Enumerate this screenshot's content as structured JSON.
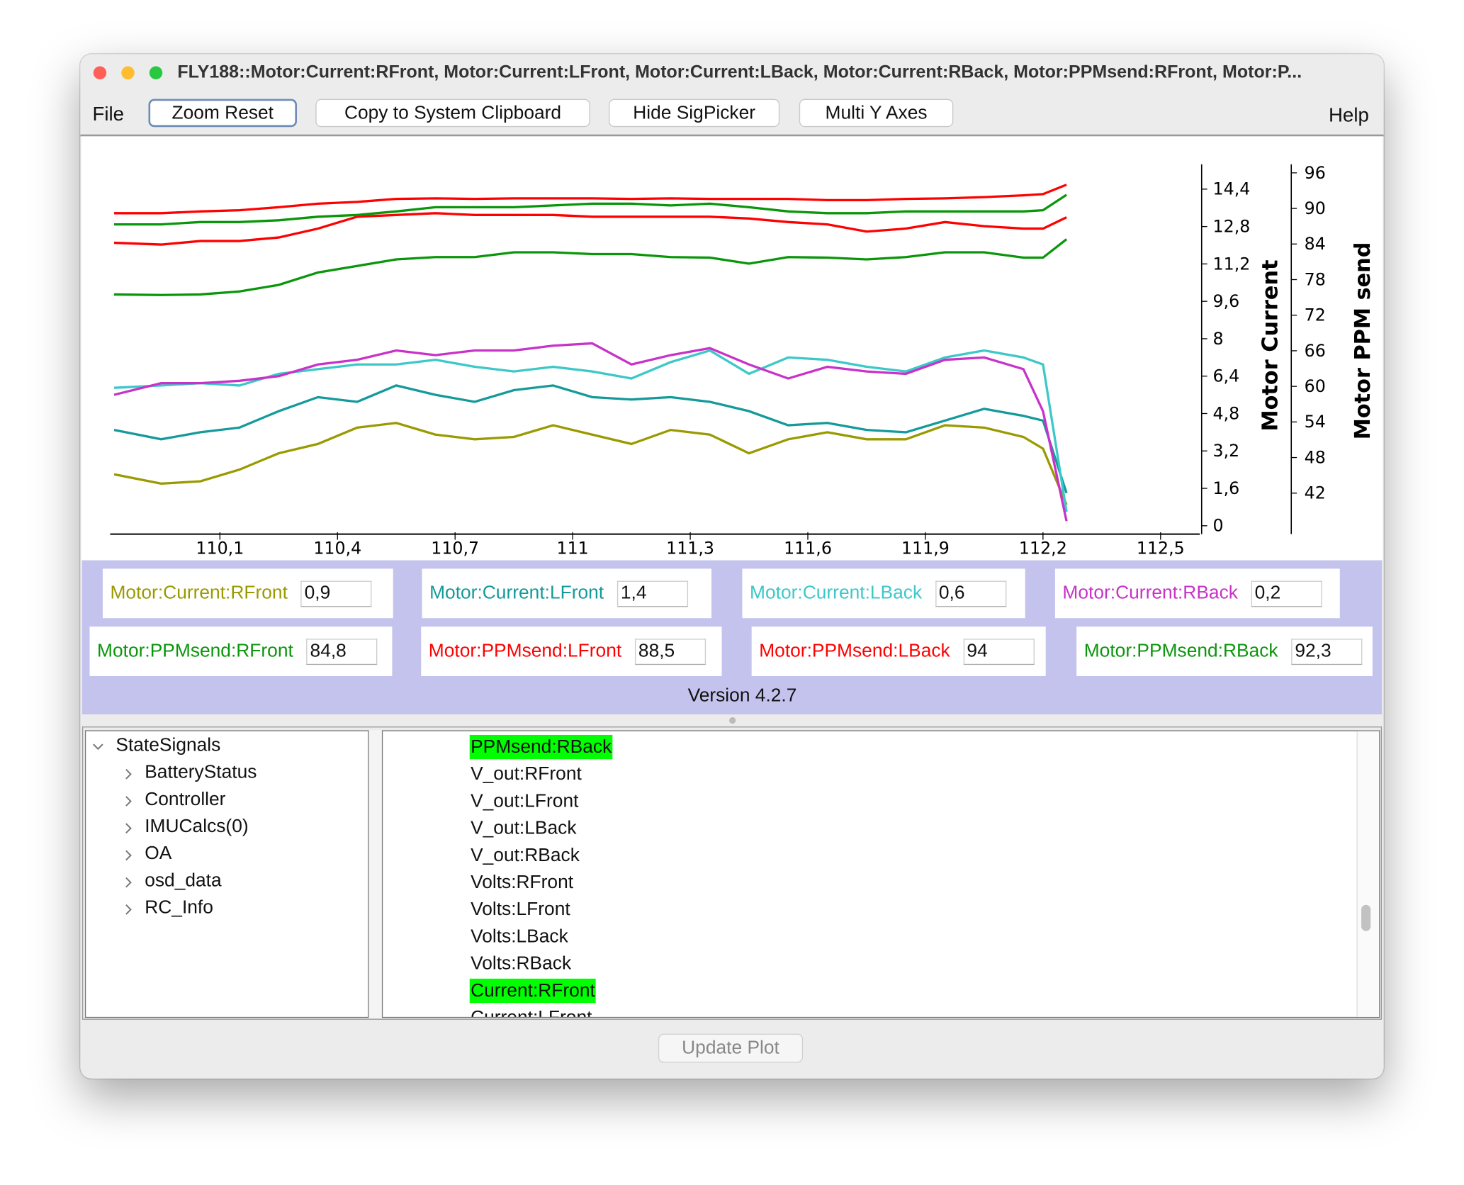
{
  "window": {
    "title": "FLY188::Motor:Current:RFront, Motor:Current:LFront, Motor:Current:LBack, Motor:Current:RBack, Motor:PPMsend:RFront, Motor:P...",
    "menu_file": "File",
    "menu_help": "Help",
    "buttons": [
      "Zoom Reset",
      "Copy to System Clipboard",
      "Hide SigPicker",
      "Multi Y Axes"
    ]
  },
  "chart_data": {
    "type": "line",
    "ylabel": "Motor Current",
    "y2label": "Motor PPM send",
    "x": [
      109.83,
      109.95,
      110.05,
      110.15,
      110.25,
      110.35,
      110.45,
      110.55,
      110.65,
      110.75,
      110.85,
      110.95,
      111.05,
      111.15,
      111.25,
      111.35,
      111.45,
      111.55,
      111.65,
      111.75,
      111.85,
      111.95,
      112.05,
      112.15,
      112.2,
      112.26
    ],
    "series": [
      {
        "name": "Motor:Current:RFront",
        "color": "#9a9a00",
        "values": [
          2.2,
          1.8,
          1.9,
          2.4,
          3.1,
          3.5,
          4.2,
          4.4,
          3.9,
          3.7,
          3.8,
          4.3,
          3.9,
          3.5,
          4.1,
          3.9,
          3.1,
          3.7,
          4.0,
          3.7,
          3.7,
          4.3,
          4.2,
          3.8,
          3.3,
          0.9
        ]
      },
      {
        "name": "Motor:Current:LFront",
        "color": "#149a9a",
        "values": [
          4.1,
          3.7,
          4.0,
          4.2,
          4.9,
          5.5,
          5.3,
          6.0,
          5.6,
          5.3,
          5.8,
          6.0,
          5.5,
          5.4,
          5.5,
          5.3,
          4.9,
          4.3,
          4.4,
          4.1,
          4.0,
          4.5,
          5.0,
          4.7,
          4.5,
          1.4
        ]
      },
      {
        "name": "Motor:Current:LBack",
        "color": "#3cc8c8",
        "values": [
          5.9,
          6.0,
          6.1,
          6.0,
          6.5,
          6.7,
          6.9,
          6.9,
          7.1,
          6.8,
          6.6,
          6.8,
          6.6,
          6.3,
          7.0,
          7.5,
          6.5,
          7.2,
          7.1,
          6.8,
          6.6,
          7.2,
          7.5,
          7.2,
          6.9,
          0.6
        ]
      },
      {
        "name": "Motor:Current:RBack",
        "color": "#c832c8",
        "values": [
          5.6,
          6.1,
          6.1,
          6.2,
          6.4,
          6.9,
          7.1,
          7.5,
          7.3,
          7.5,
          7.5,
          7.7,
          7.8,
          6.9,
          7.3,
          7.6,
          6.9,
          6.3,
          6.8,
          6.6,
          6.5,
          7.1,
          7.2,
          6.7,
          4.9,
          0.2
        ]
      },
      {
        "name": "Motor:PPMsend:RFront",
        "color": "#0a960a",
        "axis": "y2",
        "values": [
          75.5,
          75.4,
          75.5,
          76.0,
          77.1,
          79.2,
          80.3,
          81.4,
          81.8,
          81.8,
          82.6,
          82.6,
          82.3,
          82.3,
          81.8,
          81.7,
          80.7,
          81.8,
          81.7,
          81.4,
          81.8,
          82.6,
          82.6,
          81.7,
          81.7,
          84.8
        ]
      },
      {
        "name": "Motor:PPMsend:LFront",
        "color": "#ff0000",
        "axis": "y2",
        "values": [
          84.2,
          83.9,
          84.5,
          84.5,
          85.1,
          86.6,
          88.6,
          88.9,
          89.2,
          88.9,
          88.9,
          88.9,
          88.6,
          88.6,
          88.6,
          88.6,
          88.3,
          87.7,
          87.3,
          86.1,
          86.6,
          87.7,
          87.0,
          86.6,
          86.6,
          88.5
        ]
      },
      {
        "name": "Motor:PPMsend:LBack",
        "color": "#ff0000",
        "axis": "y2",
        "values": [
          89.2,
          89.2,
          89.5,
          89.7,
          90.2,
          90.8,
          91.1,
          91.6,
          91.7,
          91.6,
          91.7,
          91.7,
          91.7,
          91.6,
          91.7,
          91.6,
          91.6,
          91.6,
          91.4,
          91.4,
          91.6,
          91.7,
          91.9,
          92.2,
          92.4,
          94
        ]
      },
      {
        "name": "Motor:PPMsend:RBack",
        "color": "#0a960a",
        "axis": "y2",
        "values": [
          87.3,
          87.3,
          87.7,
          87.7,
          88.0,
          88.6,
          88.9,
          89.5,
          90.2,
          90.2,
          90.2,
          90.5,
          90.8,
          90.8,
          90.5,
          90.8,
          90.2,
          89.5,
          89.2,
          89.2,
          89.5,
          89.5,
          89.5,
          89.5,
          89.7,
          92.3
        ]
      }
    ],
    "xlim": [
      109.82,
      112.6
    ],
    "xticks": [
      {
        "value": 110.1,
        "label": "110,1"
      },
      {
        "value": 110.4,
        "label": "110,4"
      },
      {
        "value": 110.7,
        "label": "110,7"
      },
      111,
      {
        "value": 111.3,
        "label": "111,3"
      },
      {
        "value": 111.6,
        "label": "111,6"
      },
      {
        "value": 111.9,
        "label": "111,9"
      },
      {
        "value": 112.2,
        "label": "112,2"
      },
      {
        "value": 112.5,
        "label": "112,5"
      }
    ],
    "ylim": [
      0,
      15.3
    ],
    "yticks": [
      0,
      {
        "value": 1.6,
        "label": "1,6"
      },
      {
        "value": 3.2,
        "label": "3,2"
      },
      {
        "value": 4.8,
        "label": "4,8"
      },
      {
        "value": 6.4,
        "label": "6,4"
      },
      8,
      {
        "value": 9.6,
        "label": "9,6"
      },
      {
        "value": 11.2,
        "label": "11,2"
      },
      {
        "value": 12.8,
        "label": "12,8"
      },
      {
        "value": 14.4,
        "label": "14,4"
      }
    ],
    "y2lim": [
      36.5,
      96.8
    ],
    "y2ticks": [
      42,
      48,
      54,
      60,
      66,
      72,
      78,
      84,
      90,
      96
    ],
    "grid": false
  },
  "readouts": [
    "0,9",
    "1,4",
    "0,6",
    "0,2",
    "84,8",
    "88,5",
    "94",
    "92,3"
  ],
  "version": "Version 4.2.7",
  "sig_picker": {
    "tree": {
      "root": "StateSignals",
      "children": [
        "BatteryStatus",
        "Controller",
        "IMUCalcs(0)",
        "OA",
        "osd_data",
        "RC_Info"
      ]
    },
    "signals": [
      "PPMsend:RBack",
      "V_out:RFront",
      "V_out:LFront",
      "V_out:LBack",
      "V_out:RBack",
      "Volts:RFront",
      "Volts:LFront",
      "Volts:LBack",
      "Volts:RBack",
      "Current:RFront",
      "Current:LFront"
    ],
    "selected": [
      0,
      9
    ]
  },
  "update_button": "Update Plot"
}
